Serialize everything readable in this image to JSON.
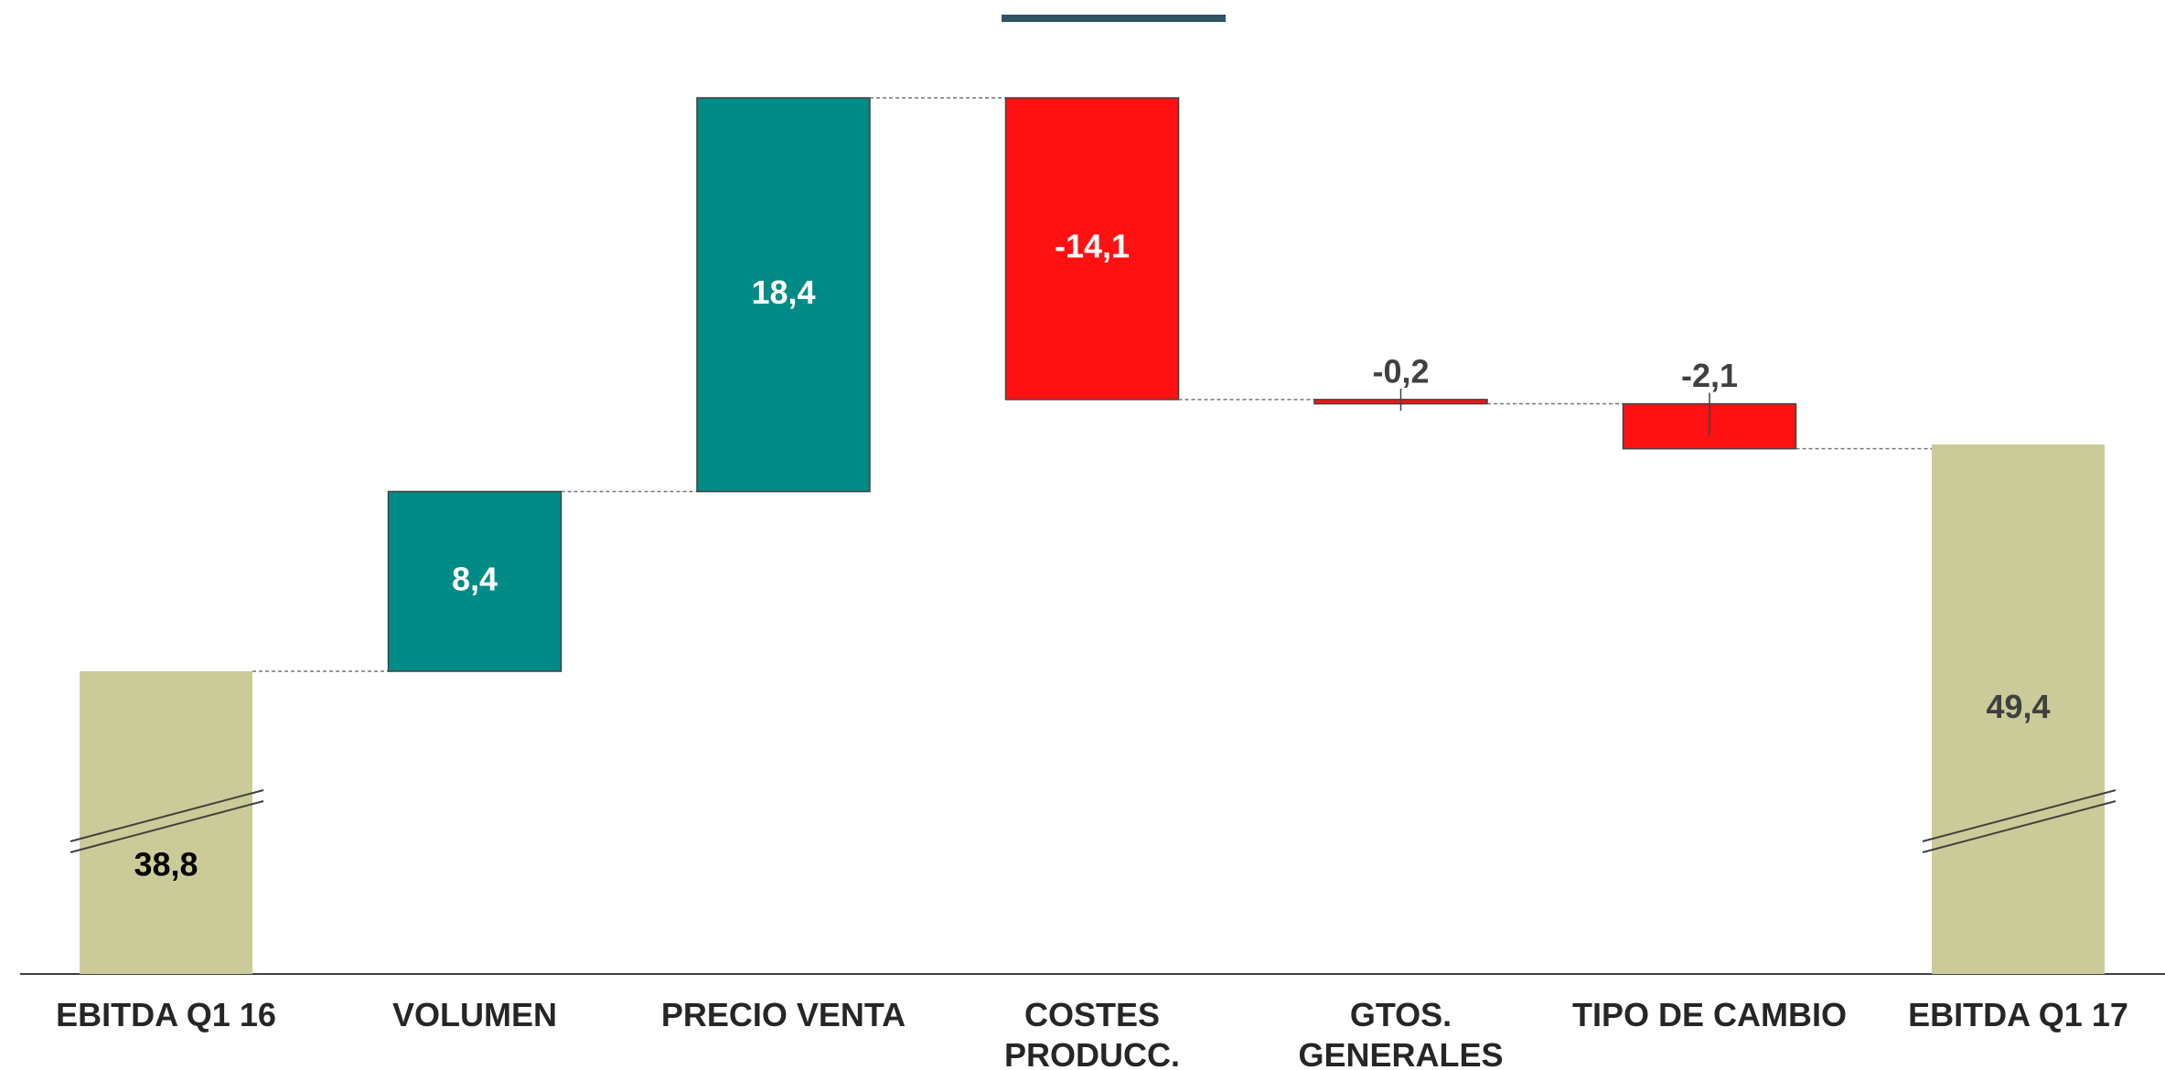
{
  "chart_data": {
    "type": "waterfall",
    "categories": [
      "EBITDA Q1 16",
      "VOLUMEN",
      "PRECIO VENTA",
      "COSTES PRODUCC.",
      "GTOS. GENERALES",
      "TIPO DE CAMBIO",
      "EBITDA Q1 17"
    ],
    "values": [
      38.8,
      8.4,
      18.4,
      -14.1,
      -0.2,
      -2.1,
      49.4
    ],
    "value_labels": [
      "38,8",
      "8,4",
      "18,4",
      "-14,1",
      "-0,2",
      "-2,1",
      "49,4"
    ],
    "totals": [
      0,
      6
    ],
    "colors": {
      "total": "#cbcb99",
      "increase": "#008b87",
      "decrease": "#ff1111"
    },
    "axis_break": true
  }
}
